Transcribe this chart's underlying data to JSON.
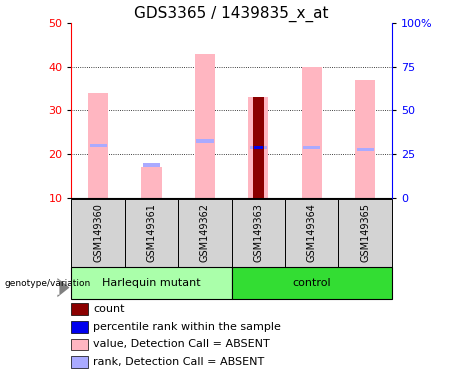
{
  "title": "GDS3365 / 1439835_x_at",
  "samples": [
    "GSM149360",
    "GSM149361",
    "GSM149362",
    "GSM149363",
    "GSM149364",
    "GSM149365"
  ],
  "ylim_left": [
    10,
    50
  ],
  "ylim_right": [
    0,
    100
  ],
  "yticks_left": [
    10,
    20,
    30,
    40,
    50
  ],
  "yticks_right": [
    0,
    25,
    50,
    75,
    100
  ],
  "ytick_right_labels": [
    "0",
    "25",
    "50",
    "75",
    "100%"
  ],
  "pink_bar_values": [
    34,
    17,
    43,
    33,
    40,
    37
  ],
  "blue_mark_values": [
    22,
    17.5,
    23,
    21.5,
    21.5,
    21
  ],
  "red_bar_value": 33,
  "blue_bar_value": 21.5,
  "red_bar_index": 3,
  "pink_color": "#FFB6C1",
  "light_blue_color": "#AAAAFF",
  "dark_red_color": "#8B0000",
  "blue_color": "#0000EE",
  "gray_color": "#D3D3D3",
  "harlequin_color": "#AAFFAA",
  "control_color": "#33DD33",
  "title_fontsize": 11,
  "tick_fontsize": 8,
  "legend_fontsize": 8,
  "sample_fontsize": 7,
  "group_fontsize": 8
}
